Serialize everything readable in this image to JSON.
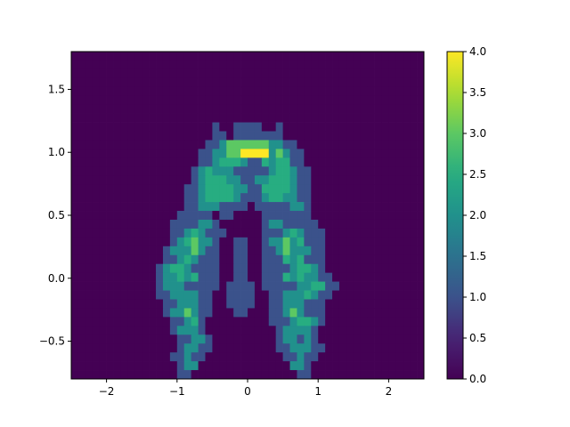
{
  "chart_data": {
    "type": "heatmap",
    "title": "",
    "xlabel": "",
    "ylabel": "",
    "colormap": "viridis",
    "xlim": [
      -2.5,
      2.5
    ],
    "ylim": [
      -0.8,
      1.8
    ],
    "x_ticks": [
      -2,
      -1,
      0,
      1,
      2
    ],
    "x_tick_labels": [
      "−2",
      "−1",
      "0",
      "1",
      "2"
    ],
    "y_ticks": [
      -0.5,
      0.0,
      0.5,
      1.0,
      1.5
    ],
    "y_tick_labels": [
      "−0.5",
      "0.0",
      "0.5",
      "1.0",
      "1.5"
    ],
    "colorbar": {
      "vmin": 0,
      "vmax": 4,
      "ticks": [
        0,
        0.5,
        1,
        1.5,
        2,
        2.5,
        3,
        3.5,
        4
      ],
      "tick_labels": [
        "0.0",
        "0.5",
        "1.0",
        "1.5",
        "2.0",
        "2.5",
        "3.0",
        "3.5",
        "4.0"
      ]
    },
    "grid": false,
    "bins_x": 50,
    "bins_y": 37,
    "cell_w": 0.1,
    "cell_h": 0.0703,
    "lookup": {
      ".": 0,
      "a": 1,
      "b": 1.5,
      "c": 2,
      "d": 2.5,
      "e": 3,
      "f": 3.5,
      "g": 4
    },
    "rows_top_to_bottom": [
      "..................................................",
      "..................................................",
      "..................................................",
      "..................................................",
      "..................................................",
      "..................................................",
      "..................................................",
      "..................................................",
      "....................a..aaaa..a....................",
      "....................aa.aaaaaaa....................",
      "...................aaceeeeeeccaa..................",
      "..................aacceeggggcecaa.................",
      "..................aacdddcaadcddaa.................",
      ".................acdcccaaaaacddcaa................",
      ".................acdddccaaccdddcaa................",
      "................aacddddccaaddddcaa................",
      "................aacddddcaaacddccaa................",
      "................aacccaaaa.aaaaacca................",
      "...............aaaaa.aa....aaaaaaa................",
      "..............aaaacca......accaaaaa...............",
      "..............aacdcaaa.....aaacdcaaa..............",
      "..............acdecca..aa..accecdaaa..............",
      ".............acccecaa..aa..aacecccaa..............",
      ".............aacdcaaa..aa..aaadcdaaa..............",
      "............acddcaaaa..aa..aaaacddca..............",
      "............accdcdaaa..aa..aaadcdccaa.............",
      "............acccaaaaa.aaaa.aaaaaccddaa............",
      "............aaccccaa..aaaa..aacccdcaa.............",
      ".............aacccaa..aaaa..aacccaaa..............",
      ".............accecaa...aa...aacecaaa..............",
      "..............aacda.........aaacddca..............",
      "..............accca..........acccca...............",
      "...............aacca.........accaca...............",
      "...............accaa.........aacccaa..............",
      "..............aacaa...........aacaa...............",
      "...............acc.............cca................",
      "...............aa...............aa................"
    ]
  }
}
